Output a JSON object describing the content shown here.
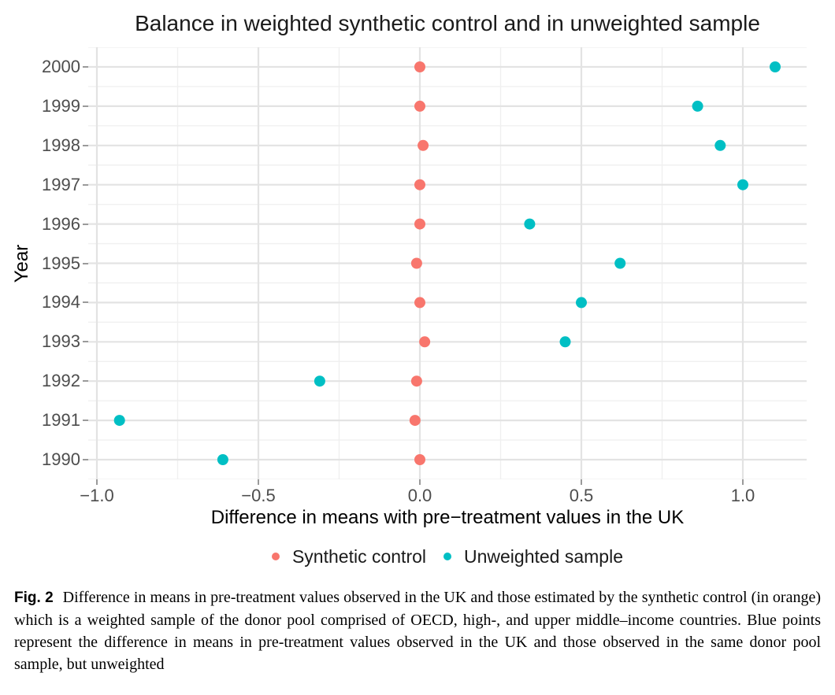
{
  "figure": {
    "title": "Balance in weighted synthetic control and in unweighted sample",
    "y_axis": {
      "title": "Year"
    },
    "x_axis": {
      "title": "Difference in means with pre−treatment values in the UK",
      "ticks": [
        {
          "label": "−1.0",
          "value": -1.0
        },
        {
          "label": "−0.5",
          "value": -0.5
        },
        {
          "label": "0.0",
          "value": 0.0
        },
        {
          "label": "0.5",
          "value": 0.5
        },
        {
          "label": "1.0",
          "value": 1.0
        }
      ]
    },
    "legend": [
      {
        "label": "Synthetic control",
        "color": "#F8766D"
      },
      {
        "label": "Unweighted sample",
        "color": "#00BFC4"
      }
    ]
  },
  "chart_data": {
    "type": "scatter",
    "title": "Balance in weighted synthetic control and in unweighted sample",
    "xlabel": "Difference in means with pre−treatment values in the UK",
    "ylabel": "Year",
    "xlim": [
      -1.03,
      1.2
    ],
    "years": [
      2000,
      1999,
      1998,
      1997,
      1996,
      1995,
      1994,
      1993,
      1992,
      1991,
      1990
    ],
    "series": [
      {
        "name": "Synthetic control",
        "color": "#F8766D",
        "values": [
          0.0,
          0.0,
          0.01,
          0.0,
          0.0,
          -0.01,
          0.0,
          0.015,
          -0.01,
          -0.015,
          0.0
        ]
      },
      {
        "name": "Unweighted sample",
        "color": "#00BFC4",
        "values": [
          1.1,
          0.86,
          0.93,
          1.0,
          0.34,
          0.62,
          0.5,
          0.45,
          -0.31,
          -0.93,
          -0.61
        ]
      }
    ],
    "grid": {
      "on": true,
      "major_x": [
        -1.0,
        -0.5,
        0.0,
        0.5,
        1.0
      ],
      "minor_x": [
        -0.75,
        -0.25,
        0.25,
        0.75
      ],
      "minor_y_years": [
        1989.5,
        1990.5,
        1991.5,
        1992.5,
        1993.5,
        1994.5,
        1995.5,
        1996.5,
        1997.5,
        1998.5,
        1999.5,
        2000.5
      ],
      "major_color": "#E3E3E3",
      "minor_color": "#F0F0F0",
      "background": "#FFFFFF"
    },
    "legend_position": "bottom center",
    "point_radius_px": 7
  },
  "caption": {
    "label": "Fig. 2",
    "text": "Difference in means in pre-treatment values observed in the UK and those estimated by the synthetic control (in orange) which is a weighted sample of the donor pool comprised of OECD, high-, and upper middle–income countries. Blue points represent the difference in means in pre-treatment values observed in the UK and those observed in the same donor pool sample, but unweighted"
  }
}
